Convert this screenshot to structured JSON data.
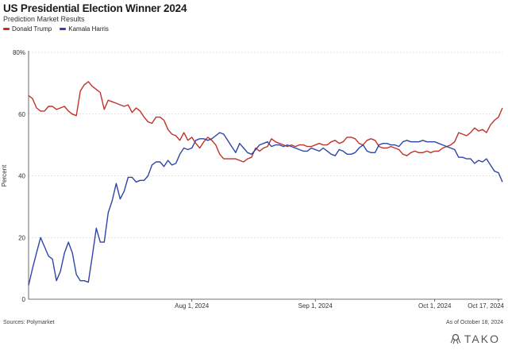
{
  "chart_data": {
    "type": "line",
    "title": "US Presidential Election Winner 2024",
    "subtitle": "Prediction Market Results",
    "ylabel": "Percent",
    "xlabel": "",
    "ylim": [
      0,
      80
    ],
    "yticks": [
      "0",
      "20",
      "40",
      "60",
      "80%"
    ],
    "ytick_values": [
      0,
      20,
      40,
      60,
      80
    ],
    "xlim": [
      "2024-06-21",
      "2024-10-18"
    ],
    "xticks": [
      {
        "date": "2024-08-01",
        "label": "Aug 1, 2024"
      },
      {
        "date": "2024-09-01",
        "label": "Sep 1, 2024"
      },
      {
        "date": "2024-10-01",
        "label": "Oct 1, 2024"
      },
      {
        "date": "2024-10-17",
        "label": "Oct 17, 2024"
      }
    ],
    "grid": "horizontal",
    "legend_position": "top-left",
    "series": [
      {
        "name": "Donald Trump",
        "color": "#c0312b",
        "points": [
          [
            "2024-06-21",
            66
          ],
          [
            "2024-06-22",
            65
          ],
          [
            "2024-06-23",
            62
          ],
          [
            "2024-06-24",
            61
          ],
          [
            "2024-06-25",
            61
          ],
          [
            "2024-06-26",
            62.5
          ],
          [
            "2024-06-27",
            62.5
          ],
          [
            "2024-06-28",
            61.5
          ],
          [
            "2024-06-29",
            62
          ],
          [
            "2024-06-30",
            62.5
          ],
          [
            "2024-07-01",
            61
          ],
          [
            "2024-07-02",
            60
          ],
          [
            "2024-07-03",
            59.5
          ],
          [
            "2024-07-04",
            67.5
          ],
          [
            "2024-07-05",
            69.5
          ],
          [
            "2024-07-06",
            70.5
          ],
          [
            "2024-07-07",
            69
          ],
          [
            "2024-07-08",
            68
          ],
          [
            "2024-07-09",
            67
          ],
          [
            "2024-07-10",
            61.5
          ],
          [
            "2024-07-11",
            64.5
          ],
          [
            "2024-07-12",
            64
          ],
          [
            "2024-07-13",
            63.5
          ],
          [
            "2024-07-14",
            63
          ],
          [
            "2024-07-15",
            62.5
          ],
          [
            "2024-07-16",
            63
          ],
          [
            "2024-07-17",
            60.5
          ],
          [
            "2024-07-18",
            62
          ],
          [
            "2024-07-19",
            61
          ],
          [
            "2024-07-20",
            59
          ],
          [
            "2024-07-21",
            57.5
          ],
          [
            "2024-07-22",
            57
          ],
          [
            "2024-07-23",
            59
          ],
          [
            "2024-07-24",
            59
          ],
          [
            "2024-07-25",
            58
          ],
          [
            "2024-07-26",
            55
          ],
          [
            "2024-07-27",
            53.5
          ],
          [
            "2024-07-28",
            53
          ],
          [
            "2024-07-29",
            51.5
          ],
          [
            "2024-07-30",
            54
          ],
          [
            "2024-07-31",
            51.5
          ],
          [
            "2024-08-01",
            52.5
          ],
          [
            "2024-08-02",
            50.5
          ],
          [
            "2024-08-03",
            49
          ],
          [
            "2024-08-04",
            51
          ],
          [
            "2024-08-05",
            52.5
          ],
          [
            "2024-08-06",
            51.5
          ],
          [
            "2024-08-07",
            50
          ],
          [
            "2024-08-08",
            47
          ],
          [
            "2024-08-09",
            45.5
          ],
          [
            "2024-08-10",
            45.5
          ],
          [
            "2024-08-11",
            45.5
          ],
          [
            "2024-08-12",
            45.5
          ],
          [
            "2024-08-13",
            45
          ],
          [
            "2024-08-14",
            44.5
          ],
          [
            "2024-08-15",
            45.5
          ],
          [
            "2024-08-16",
            46
          ],
          [
            "2024-08-17",
            49
          ],
          [
            "2024-08-18",
            48
          ],
          [
            "2024-08-19",
            49
          ],
          [
            "2024-08-20",
            49.5
          ],
          [
            "2024-08-21",
            52
          ],
          [
            "2024-08-22",
            51
          ],
          [
            "2024-08-23",
            50.5
          ],
          [
            "2024-08-24",
            50
          ],
          [
            "2024-08-25",
            49.5
          ],
          [
            "2024-08-26",
            50
          ],
          [
            "2024-08-27",
            49.5
          ],
          [
            "2024-08-28",
            50
          ],
          [
            "2024-08-29",
            50
          ],
          [
            "2024-08-30",
            49.5
          ],
          [
            "2024-08-31",
            49.5
          ],
          [
            "2024-09-01",
            50
          ],
          [
            "2024-09-02",
            50.5
          ],
          [
            "2024-09-03",
            50
          ],
          [
            "2024-09-04",
            50
          ],
          [
            "2024-09-05",
            51
          ],
          [
            "2024-09-06",
            51.5
          ],
          [
            "2024-09-07",
            50.5
          ],
          [
            "2024-09-08",
            51
          ],
          [
            "2024-09-09",
            52.5
          ],
          [
            "2024-09-10",
            52.5
          ],
          [
            "2024-09-11",
            52
          ],
          [
            "2024-09-12",
            50.5
          ],
          [
            "2024-09-13",
            50
          ],
          [
            "2024-09-14",
            51.5
          ],
          [
            "2024-09-15",
            52
          ],
          [
            "2024-09-16",
            51.5
          ],
          [
            "2024-09-17",
            49.5
          ],
          [
            "2024-09-18",
            49
          ],
          [
            "2024-09-19",
            49
          ],
          [
            "2024-09-20",
            49.5
          ],
          [
            "2024-09-21",
            49
          ],
          [
            "2024-09-22",
            48.5
          ],
          [
            "2024-09-23",
            47
          ],
          [
            "2024-09-24",
            46.5
          ],
          [
            "2024-09-25",
            47.5
          ],
          [
            "2024-09-26",
            48
          ],
          [
            "2024-09-27",
            47.5
          ],
          [
            "2024-09-28",
            47.5
          ],
          [
            "2024-09-29",
            48
          ],
          [
            "2024-09-30",
            47.5
          ],
          [
            "2024-10-01",
            48
          ],
          [
            "2024-10-02",
            48
          ],
          [
            "2024-10-03",
            49
          ],
          [
            "2024-10-04",
            49.5
          ],
          [
            "2024-10-05",
            50
          ],
          [
            "2024-10-06",
            51
          ],
          [
            "2024-10-07",
            54
          ],
          [
            "2024-10-08",
            53.5
          ],
          [
            "2024-10-09",
            53
          ],
          [
            "2024-10-10",
            54
          ],
          [
            "2024-10-11",
            55.5
          ],
          [
            "2024-10-12",
            54.5
          ],
          [
            "2024-10-13",
            55
          ],
          [
            "2024-10-14",
            54
          ],
          [
            "2024-10-15",
            56.5
          ],
          [
            "2024-10-16",
            58
          ],
          [
            "2024-10-17",
            59
          ],
          [
            "2024-10-18",
            62
          ]
        ]
      },
      {
        "name": "Kamala Harris",
        "color": "#2e45a8",
        "points": [
          [
            "2024-06-21",
            4.5
          ],
          [
            "2024-06-22",
            10
          ],
          [
            "2024-06-23",
            15
          ],
          [
            "2024-06-24",
            20
          ],
          [
            "2024-06-25",
            17
          ],
          [
            "2024-06-26",
            14
          ],
          [
            "2024-06-27",
            13
          ],
          [
            "2024-06-28",
            6
          ],
          [
            "2024-06-29",
            9
          ],
          [
            "2024-06-30",
            15
          ],
          [
            "2024-07-01",
            18.5
          ],
          [
            "2024-07-02",
            15
          ],
          [
            "2024-07-03",
            8
          ],
          [
            "2024-07-04",
            6
          ],
          [
            "2024-07-05",
            6
          ],
          [
            "2024-07-06",
            5.5
          ],
          [
            "2024-07-07",
            14
          ],
          [
            "2024-07-08",
            23
          ],
          [
            "2024-07-09",
            18.5
          ],
          [
            "2024-07-10",
            18.5
          ],
          [
            "2024-07-11",
            28
          ],
          [
            "2024-07-12",
            32
          ],
          [
            "2024-07-13",
            37.5
          ],
          [
            "2024-07-14",
            32.5
          ],
          [
            "2024-07-15",
            35
          ],
          [
            "2024-07-16",
            39.5
          ],
          [
            "2024-07-17",
            39.5
          ],
          [
            "2024-07-18",
            38
          ],
          [
            "2024-07-19",
            38.5
          ],
          [
            "2024-07-20",
            38.5
          ],
          [
            "2024-07-21",
            40
          ],
          [
            "2024-07-22",
            43.5
          ],
          [
            "2024-07-23",
            44.5
          ],
          [
            "2024-07-24",
            44.5
          ],
          [
            "2024-07-25",
            43
          ],
          [
            "2024-07-26",
            45
          ],
          [
            "2024-07-27",
            43.5
          ],
          [
            "2024-07-28",
            44
          ],
          [
            "2024-07-29",
            47
          ],
          [
            "2024-07-30",
            49
          ],
          [
            "2024-07-31",
            48.5
          ],
          [
            "2024-08-01",
            49
          ],
          [
            "2024-08-02",
            51.5
          ],
          [
            "2024-08-03",
            52
          ],
          [
            "2024-08-04",
            52
          ],
          [
            "2024-08-05",
            51.5
          ],
          [
            "2024-08-06",
            52
          ],
          [
            "2024-08-07",
            53
          ],
          [
            "2024-08-08",
            54
          ],
          [
            "2024-08-09",
            53.5
          ],
          [
            "2024-08-10",
            51.5
          ],
          [
            "2024-08-11",
            49.5
          ],
          [
            "2024-08-12",
            47.5
          ],
          [
            "2024-08-13",
            50.5
          ],
          [
            "2024-08-14",
            49
          ],
          [
            "2024-08-15",
            47.5
          ],
          [
            "2024-08-16",
            47
          ],
          [
            "2024-08-17",
            48.5
          ],
          [
            "2024-08-18",
            50
          ],
          [
            "2024-08-19",
            50.5
          ],
          [
            "2024-08-20",
            51
          ],
          [
            "2024-08-21",
            49.5
          ],
          [
            "2024-08-22",
            50
          ],
          [
            "2024-08-23",
            50
          ],
          [
            "2024-08-24",
            49.5
          ],
          [
            "2024-08-25",
            50
          ],
          [
            "2024-08-26",
            49.5
          ],
          [
            "2024-08-27",
            49
          ],
          [
            "2024-08-28",
            48.5
          ],
          [
            "2024-08-29",
            48
          ],
          [
            "2024-08-30",
            48
          ],
          [
            "2024-08-31",
            49
          ],
          [
            "2024-09-01",
            48.5
          ],
          [
            "2024-09-02",
            48
          ],
          [
            "2024-09-03",
            49
          ],
          [
            "2024-09-04",
            48
          ],
          [
            "2024-09-05",
            47
          ],
          [
            "2024-09-06",
            46.5
          ],
          [
            "2024-09-07",
            48.5
          ],
          [
            "2024-09-08",
            48
          ],
          [
            "2024-09-09",
            47
          ],
          [
            "2024-09-10",
            47
          ],
          [
            "2024-09-11",
            47.5
          ],
          [
            "2024-09-12",
            49
          ],
          [
            "2024-09-13",
            50
          ],
          [
            "2024-09-14",
            48
          ],
          [
            "2024-09-15",
            47.5
          ],
          [
            "2024-09-16",
            47.5
          ],
          [
            "2024-09-17",
            50
          ],
          [
            "2024-09-18",
            50.5
          ],
          [
            "2024-09-19",
            50.5
          ],
          [
            "2024-09-20",
            50
          ],
          [
            "2024-09-21",
            50
          ],
          [
            "2024-09-22",
            49.5
          ],
          [
            "2024-09-23",
            51
          ],
          [
            "2024-09-24",
            51.5
          ],
          [
            "2024-09-25",
            51
          ],
          [
            "2024-09-26",
            51
          ],
          [
            "2024-09-27",
            51
          ],
          [
            "2024-09-28",
            51.5
          ],
          [
            "2024-09-29",
            51
          ],
          [
            "2024-09-30",
            51
          ],
          [
            "2024-10-01",
            51
          ],
          [
            "2024-10-02",
            50.5
          ],
          [
            "2024-10-03",
            50
          ],
          [
            "2024-10-04",
            49.5
          ],
          [
            "2024-10-05",
            49
          ],
          [
            "2024-10-06",
            48.5
          ],
          [
            "2024-10-07",
            46
          ],
          [
            "2024-10-08",
            46
          ],
          [
            "2024-10-09",
            45.5
          ],
          [
            "2024-10-10",
            45.5
          ],
          [
            "2024-10-11",
            44
          ],
          [
            "2024-10-12",
            45
          ],
          [
            "2024-10-13",
            44.5
          ],
          [
            "2024-10-14",
            45.5
          ],
          [
            "2024-10-15",
            43.5
          ],
          [
            "2024-10-16",
            41.5
          ],
          [
            "2024-10-17",
            41
          ],
          [
            "2024-10-18",
            38
          ]
        ]
      }
    ]
  },
  "footer": {
    "source": "Sources: Polymarket",
    "as_of": "As of October 18, 2024",
    "brand": "TAKO"
  }
}
